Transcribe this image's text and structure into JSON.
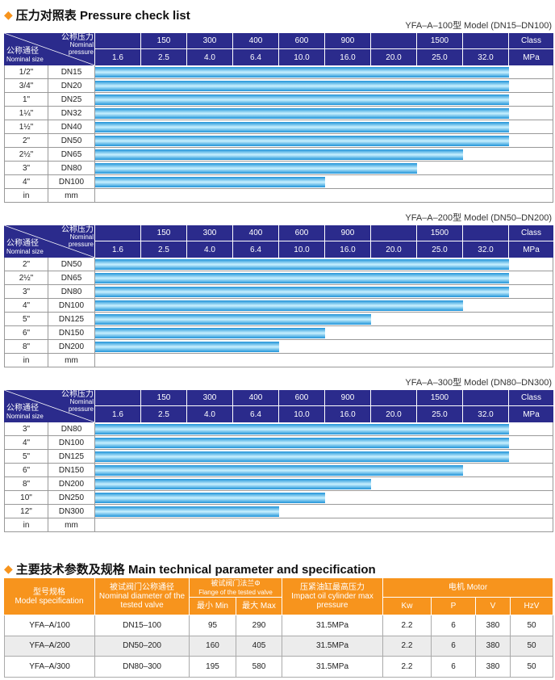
{
  "section1": {
    "title": "压力对照表 Pressure check list"
  },
  "header": {
    "pressure_zh": "公称压力",
    "pressure_en": "Nominal pressure",
    "size_zh": "公称通径",
    "size_en": "Nominal size",
    "class_values": [
      null,
      "150",
      "300",
      "400",
      "600",
      "900",
      null,
      "1500",
      null
    ],
    "class_label": "Class",
    "mpa_values": [
      "1.6",
      "2.5",
      "4.0",
      "6.4",
      "10.0",
      "16.0",
      "20.0",
      "25.0",
      "32.0"
    ],
    "mpa_label": "MPa",
    "unit_in": "in",
    "unit_mm": "mm"
  },
  "tables": [
    {
      "model": "YFA–A–100型  Model (DN15–DN100)",
      "rows": [
        {
          "inch": "1/2\"",
          "dn": "DN15",
          "max": "32.0"
        },
        {
          "inch": "3/4\"",
          "dn": "DN20",
          "max": "32.0"
        },
        {
          "inch": "1\"",
          "dn": "DN25",
          "max": "32.0"
        },
        {
          "inch": "1¼\"",
          "dn": "DN32",
          "max": "32.0"
        },
        {
          "inch": "1½\"",
          "dn": "DN40",
          "max": "32.0"
        },
        {
          "inch": "2\"",
          "dn": "DN50",
          "max": "32.0"
        },
        {
          "inch": "2½\"",
          "dn": "DN65",
          "max": "25.0"
        },
        {
          "inch": "3\"",
          "dn": "DN80",
          "max": "20.0"
        },
        {
          "inch": "4\"",
          "dn": "DN100",
          "max": "10.0"
        }
      ]
    },
    {
      "model": "YFA–A–200型  Model (DN50–DN200)",
      "rows": [
        {
          "inch": "2\"",
          "dn": "DN50",
          "max": "32.0"
        },
        {
          "inch": "2½\"",
          "dn": "DN65",
          "max": "32.0"
        },
        {
          "inch": "3\"",
          "dn": "DN80",
          "max": "32.0"
        },
        {
          "inch": "4\"",
          "dn": "DN100",
          "max": "25.0"
        },
        {
          "inch": "5\"",
          "dn": "DN125",
          "max": "16.0"
        },
        {
          "inch": "6\"",
          "dn": "DN150",
          "max": "10.0"
        },
        {
          "inch": "8\"",
          "dn": "DN200",
          "max": "6.4"
        }
      ]
    },
    {
      "model": "YFA–A–300型  Model (DN80–DN300)",
      "rows": [
        {
          "inch": "3\"",
          "dn": "DN80",
          "max": "32.0"
        },
        {
          "inch": "4\"",
          "dn": "DN100",
          "max": "32.0"
        },
        {
          "inch": "5\"",
          "dn": "DN125",
          "max": "32.0"
        },
        {
          "inch": "6\"",
          "dn": "DN150",
          "max": "25.0"
        },
        {
          "inch": "8\"",
          "dn": "DN200",
          "max": "16.0"
        },
        {
          "inch": "10\"",
          "dn": "DN250",
          "max": "10.0"
        },
        {
          "inch": "12\"",
          "dn": "DN300",
          "max": "6.4"
        }
      ]
    }
  ],
  "section2": {
    "title": "主要技术参数及规格 Main technical parameter and specification"
  },
  "spec": {
    "headers": {
      "model": {
        "zh": "型号规格",
        "en": "Model specification"
      },
      "diameter": {
        "zh": "被试阀门公称通径",
        "en": "Nominal diameter of the tested valve"
      },
      "flange": {
        "zh": "被试阀门法兰Φ",
        "en": "Flange of the tested valve",
        "min": "最小 Min",
        "max": "最大 Max"
      },
      "pressure": {
        "zh": "压紧油缸最高压力",
        "en": "Impact oil cylinder max pressure"
      },
      "motor": {
        "title": "电机 Motor",
        "subs": [
          "Kw",
          "P",
          "V",
          "HzV"
        ]
      }
    },
    "rows": [
      [
        "YFA–A/100",
        "DN15–100",
        95,
        290,
        "31.5MPa",
        2.2,
        6,
        380,
        50
      ],
      [
        "YFA–A/200",
        "DN50–200",
        160,
        405,
        "31.5MPa",
        2.2,
        6,
        380,
        50
      ],
      [
        "YFA–A/300",
        "DN80–300",
        195,
        580,
        "31.5MPa",
        2.2,
        6,
        380,
        50
      ]
    ]
  }
}
